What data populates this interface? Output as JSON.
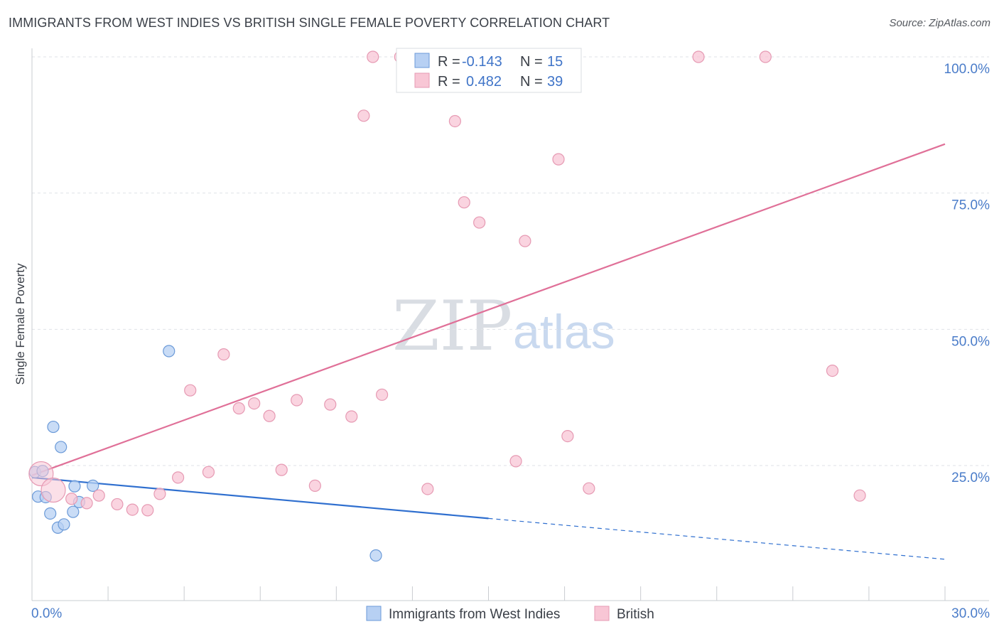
{
  "header": {
    "title": "IMMIGRANTS FROM WEST INDIES VS BRITISH SINGLE FEMALE POVERTY CORRELATION CHART",
    "source": "Source: ZipAtlas.com"
  },
  "watermark": {
    "zip": "ZIP",
    "atlas": "atlas"
  },
  "legend": {
    "r_label": "R =",
    "n_label": "N =",
    "rows": [
      {
        "series": "Immigrants from West Indies",
        "r": "-0.143",
        "n": "15",
        "fill": "#b7d0f3",
        "stroke": "#6b9ad8"
      },
      {
        "series": "British",
        "r": "0.482",
        "n": "39",
        "fill": "#f8c6d5",
        "stroke": "#e69ab3"
      }
    ]
  },
  "chart_data": {
    "type": "scatter",
    "title": "IMMIGRANTS FROM WEST INDIES VS BRITISH SINGLE FEMALE POVERTY CORRELATION CHART",
    "xlabel": "",
    "ylabel": "Single Female Poverty",
    "xlim": [
      0,
      30
    ],
    "ylim": [
      0,
      105
    ],
    "x_tick_labels": [
      "0.0%",
      "30.0%"
    ],
    "y_ticks": [
      25,
      50,
      75,
      100
    ],
    "y_tick_labels": [
      "25.0%",
      "50.0%",
      "75.0%",
      "100.0%"
    ],
    "grid": true,
    "legend_position": "top-center",
    "series": [
      {
        "name": "Immigrants from West Indies",
        "color": "#6b9ad8",
        "fill": "#b7d0f3",
        "line_color": "#2f6fcf",
        "trend": {
          "x0": 0,
          "y0": 22.8,
          "x1": 15,
          "y1": 15.3,
          "dashed_to_x": 30,
          "dashed_to_y": 7.8
        },
        "points": [
          {
            "x": 0.1,
            "y": 23.8
          },
          {
            "x": 0.2,
            "y": 19.3
          },
          {
            "x": 0.35,
            "y": 24.0
          },
          {
            "x": 0.45,
            "y": 19.2
          },
          {
            "x": 0.6,
            "y": 16.2
          },
          {
            "x": 0.7,
            "y": 32.1
          },
          {
            "x": 0.85,
            "y": 13.6
          },
          {
            "x": 0.95,
            "y": 28.4
          },
          {
            "x": 1.05,
            "y": 14.2
          },
          {
            "x": 1.35,
            "y": 16.5
          },
          {
            "x": 1.4,
            "y": 21.2
          },
          {
            "x": 1.55,
            "y": 18.3
          },
          {
            "x": 2.0,
            "y": 21.3
          },
          {
            "x": 4.5,
            "y": 46.0
          },
          {
            "x": 11.3,
            "y": 8.5
          }
        ]
      },
      {
        "name": "British",
        "color": "#e69ab3",
        "fill": "#f8c6d5",
        "line_color": "#e07098",
        "trend": {
          "x0": 0,
          "y0": 23.2,
          "x1": 30,
          "y1": 84.0
        },
        "points": [
          {
            "x": 0.3,
            "y": 23.5,
            "big": true
          },
          {
            "x": 0.7,
            "y": 20.5,
            "big": true
          },
          {
            "x": 1.3,
            "y": 18.9
          },
          {
            "x": 1.8,
            "y": 18.1
          },
          {
            "x": 2.2,
            "y": 19.5
          },
          {
            "x": 2.8,
            "y": 17.9
          },
          {
            "x": 3.3,
            "y": 16.9
          },
          {
            "x": 3.8,
            "y": 16.8
          },
          {
            "x": 4.2,
            "y": 19.8
          },
          {
            "x": 4.8,
            "y": 22.8
          },
          {
            "x": 5.2,
            "y": 38.8
          },
          {
            "x": 5.8,
            "y": 23.8
          },
          {
            "x": 6.3,
            "y": 45.4
          },
          {
            "x": 6.8,
            "y": 35.5
          },
          {
            "x": 7.3,
            "y": 36.4
          },
          {
            "x": 7.8,
            "y": 34.1
          },
          {
            "x": 8.2,
            "y": 24.2
          },
          {
            "x": 8.7,
            "y": 37.0
          },
          {
            "x": 9.3,
            "y": 21.3
          },
          {
            "x": 9.8,
            "y": 36.2
          },
          {
            "x": 10.5,
            "y": 34.0
          },
          {
            "x": 11.5,
            "y": 38.0
          },
          {
            "x": 10.9,
            "y": 89.2
          },
          {
            "x": 11.2,
            "y": 100.0
          },
          {
            "x": 12.1,
            "y": 100.0
          },
          {
            "x": 12.5,
            "y": 100.0
          },
          {
            "x": 13.0,
            "y": 20.7
          },
          {
            "x": 13.9,
            "y": 88.2
          },
          {
            "x": 14.2,
            "y": 73.3
          },
          {
            "x": 14.7,
            "y": 69.6
          },
          {
            "x": 15.9,
            "y": 25.8
          },
          {
            "x": 16.2,
            "y": 66.2
          },
          {
            "x": 17.3,
            "y": 81.2
          },
          {
            "x": 17.6,
            "y": 30.4
          },
          {
            "x": 18.3,
            "y": 20.8
          },
          {
            "x": 21.9,
            "y": 100.0
          },
          {
            "x": 24.1,
            "y": 100.0
          },
          {
            "x": 26.3,
            "y": 42.4
          },
          {
            "x": 27.2,
            "y": 19.5
          }
        ]
      }
    ]
  }
}
